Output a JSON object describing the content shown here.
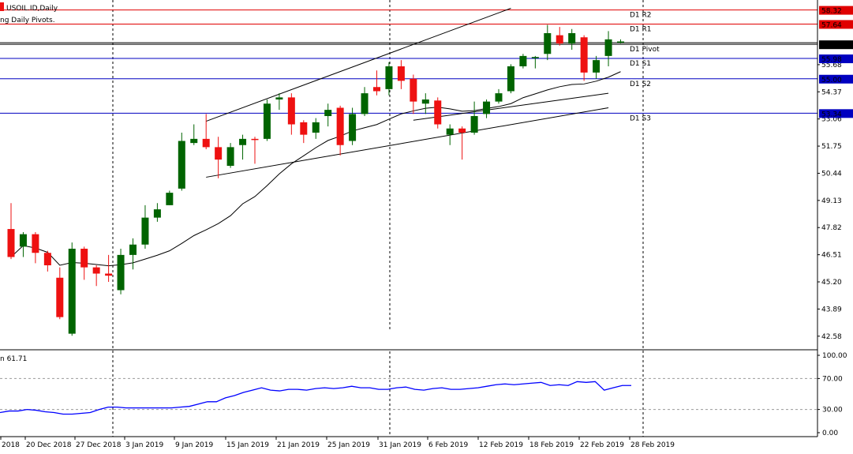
{
  "header": {
    "symbol_title": "USOIL.ID,Daily",
    "indicator_title": "ng Daily Pivots."
  },
  "indicator": {
    "label": "n 61.71",
    "ticks": [
      "100.00",
      "70.00",
      "30.00",
      "0.00"
    ]
  },
  "axis": {
    "price_ticks": [
      "55.68",
      "54.37",
      "53.06",
      "51.75",
      "50.44",
      "49.13",
      "47.82",
      "46.51",
      "45.20",
      "43.89",
      "42.58"
    ],
    "date_labels": [
      "2018",
      "20 Dec 2018",
      "27 Dec 2018",
      "3 Jan 2019",
      "9 Jan 2019",
      "15 Jan 2019",
      "21 Jan 2019",
      "25 Jan 2019",
      "31 Jan 2019",
      "6 Feb 2019",
      "12 Feb 2019",
      "18 Feb 2019",
      "22 Feb 2019",
      "28 Feb 2019"
    ]
  },
  "pivot_levels": [
    {
      "name": "D1 R2",
      "price": "58.32",
      "color": "#e00000"
    },
    {
      "name": "D1 R1",
      "price": "57.64",
      "color": "#e00000"
    },
    {
      "name": "D1 Pivot",
      "price": "56.66",
      "color": "#000000"
    },
    {
      "name": "D1 S1",
      "price": "55.98",
      "color": "#0000c0"
    },
    {
      "name": "D1 S2",
      "price": "55.00",
      "color": "#0000c0"
    },
    {
      "name": "D1 S3",
      "price": "53.34",
      "color": "#0000c0"
    }
  ],
  "colors": {
    "bull": "#006400",
    "bear": "#ee1111",
    "pivot_res": "#e00000",
    "pivot_sup": "#0000c0",
    "rsi": "#0000ff"
  },
  "chart_data": {
    "type": "candlestick",
    "symbol": "USOIL.ID",
    "timeframe": "Daily",
    "ylim": [
      42.0,
      58.8
    ],
    "candles": [
      {
        "o": 47.75,
        "h": 49.0,
        "l": 46.3,
        "c": 46.4
      },
      {
        "o": 46.9,
        "h": 47.6,
        "l": 46.4,
        "c": 47.5
      },
      {
        "o": 47.5,
        "h": 47.6,
        "l": 46.1,
        "c": 46.6
      },
      {
        "o": 46.6,
        "h": 46.7,
        "l": 45.7,
        "c": 46.0
      },
      {
        "o": 45.4,
        "h": 45.9,
        "l": 43.4,
        "c": 43.5
      },
      {
        "o": 42.7,
        "h": 47.1,
        "l": 42.6,
        "c": 46.8
      },
      {
        "o": 46.8,
        "h": 46.9,
        "l": 45.3,
        "c": 45.9
      },
      {
        "o": 45.9,
        "h": 46.0,
        "l": 45.0,
        "c": 45.6
      },
      {
        "o": 45.6,
        "h": 46.5,
        "l": 45.2,
        "c": 45.5
      },
      {
        "o": 44.8,
        "h": 46.8,
        "l": 44.6,
        "c": 46.5
      },
      {
        "o": 46.5,
        "h": 47.3,
        "l": 45.8,
        "c": 47.0
      },
      {
        "o": 47.0,
        "h": 48.9,
        "l": 46.8,
        "c": 48.3
      },
      {
        "o": 48.3,
        "h": 49.0,
        "l": 48.1,
        "c": 48.7
      },
      {
        "o": 48.9,
        "h": 49.6,
        "l": 48.9,
        "c": 49.5
      },
      {
        "o": 49.7,
        "h": 52.4,
        "l": 49.6,
        "c": 52.0
      },
      {
        "o": 51.9,
        "h": 52.8,
        "l": 51.8,
        "c": 52.1
      },
      {
        "o": 52.1,
        "h": 53.3,
        "l": 51.6,
        "c": 51.7
      },
      {
        "o": 51.7,
        "h": 52.2,
        "l": 50.2,
        "c": 51.1
      },
      {
        "o": 50.8,
        "h": 51.9,
        "l": 50.7,
        "c": 51.7
      },
      {
        "o": 51.8,
        "h": 52.3,
        "l": 51.1,
        "c": 52.1
      },
      {
        "o": 52.1,
        "h": 52.2,
        "l": 50.9,
        "c": 52.05
      },
      {
        "o": 52.1,
        "h": 54.0,
        "l": 52.0,
        "c": 53.8
      },
      {
        "o": 54.0,
        "h": 54.3,
        "l": 53.5,
        "c": 54.1
      },
      {
        "o": 54.1,
        "h": 54.3,
        "l": 52.3,
        "c": 52.8
      },
      {
        "o": 52.9,
        "h": 53.0,
        "l": 51.9,
        "c": 52.3
      },
      {
        "o": 52.4,
        "h": 53.1,
        "l": 52.1,
        "c": 52.9
      },
      {
        "o": 53.2,
        "h": 53.8,
        "l": 52.7,
        "c": 53.5
      },
      {
        "o": 53.6,
        "h": 53.7,
        "l": 51.3,
        "c": 51.8
      },
      {
        "o": 52.0,
        "h": 53.6,
        "l": 51.8,
        "c": 53.3
      },
      {
        "o": 53.3,
        "h": 54.6,
        "l": 53.2,
        "c": 54.3
      },
      {
        "o": 54.6,
        "h": 55.4,
        "l": 54.2,
        "c": 54.4
      },
      {
        "o": 54.5,
        "h": 55.8,
        "l": 54.2,
        "c": 55.6
      },
      {
        "o": 55.6,
        "h": 55.9,
        "l": 54.5,
        "c": 54.9
      },
      {
        "o": 55.0,
        "h": 55.2,
        "l": 53.3,
        "c": 53.9
      },
      {
        "o": 53.8,
        "h": 54.3,
        "l": 53.3,
        "c": 54.0
      },
      {
        "o": 53.95,
        "h": 54.1,
        "l": 52.6,
        "c": 52.8
      },
      {
        "o": 52.3,
        "h": 52.8,
        "l": 51.8,
        "c": 52.6
      },
      {
        "o": 52.6,
        "h": 52.7,
        "l": 51.1,
        "c": 52.4
      },
      {
        "o": 52.4,
        "h": 53.9,
        "l": 52.3,
        "c": 53.2
      },
      {
        "o": 53.3,
        "h": 54.0,
        "l": 53.1,
        "c": 53.9
      },
      {
        "o": 53.9,
        "h": 54.5,
        "l": 53.8,
        "c": 54.3
      },
      {
        "o": 54.4,
        "h": 55.7,
        "l": 54.3,
        "c": 55.6
      },
      {
        "o": 55.6,
        "h": 56.2,
        "l": 55.5,
        "c": 56.1
      },
      {
        "o": 56.0,
        "h": 56.1,
        "l": 55.5,
        "c": 56.05
      },
      {
        "o": 56.2,
        "h": 57.6,
        "l": 55.9,
        "c": 57.2
      },
      {
        "o": 57.1,
        "h": 57.5,
        "l": 56.6,
        "c": 56.7
      },
      {
        "o": 56.7,
        "h": 57.4,
        "l": 56.4,
        "c": 57.2
      },
      {
        "o": 57.0,
        "h": 57.1,
        "l": 54.9,
        "c": 55.3
      },
      {
        "o": 55.3,
        "h": 56.1,
        "l": 55.0,
        "c": 55.9
      },
      {
        "o": 56.1,
        "h": 57.3,
        "l": 55.6,
        "c": 56.9
      },
      {
        "o": 56.8,
        "h": 56.9,
        "l": 56.7,
        "c": 56.8
      }
    ],
    "current_price": "56.66",
    "rsi": {
      "period_label": "61.71",
      "ylim": [
        0,
        100
      ],
      "levels": [
        70,
        30
      ],
      "values": [
        26,
        28,
        28,
        30,
        29,
        27,
        26,
        24,
        24,
        25,
        26,
        30,
        33,
        33,
        32,
        32,
        32,
        32,
        32,
        32,
        33,
        34,
        37,
        40,
        40,
        45,
        48,
        52,
        55,
        58,
        55,
        54,
        56,
        56,
        55,
        57,
        58,
        57,
        58,
        60,
        58,
        58,
        56,
        56,
        58,
        59,
        56,
        55,
        57,
        58,
        56,
        56,
        57,
        58,
        60,
        62,
        63,
        62,
        63,
        64,
        65,
        61,
        62,
        61,
        66,
        65,
        66,
        55,
        58,
        61,
        61
      ]
    }
  }
}
